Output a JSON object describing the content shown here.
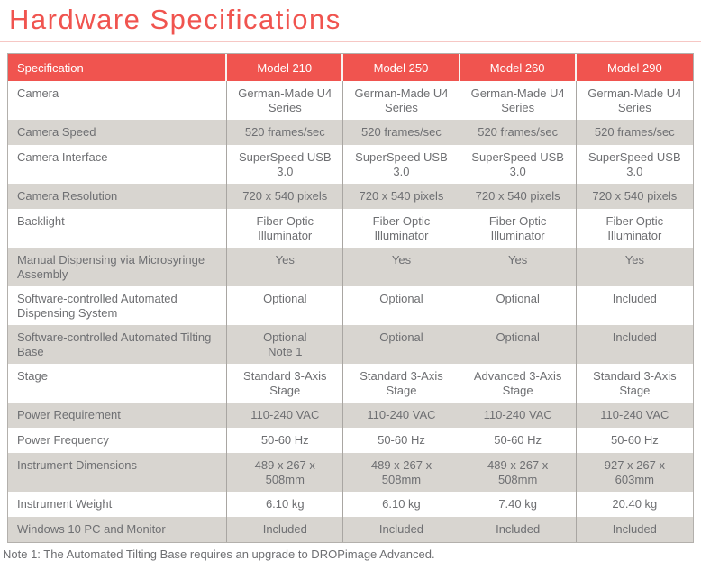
{
  "page": {
    "title": "Hardware Specifications",
    "note": "Note 1: The Automated Tilting Base requires an upgrade to DROPimage Advanced."
  },
  "colors": {
    "accent": "#F0544F",
    "title_underline": "#F6C7C4",
    "alt_row_background": "#D8D5D0",
    "cell_text": "#6E6F72",
    "header_text": "#FFFFFF",
    "column_divider": "#A9A6A2"
  },
  "table": {
    "columns": [
      "Specification",
      "Model 210",
      "Model 250",
      "Model 260",
      "Model 290"
    ],
    "rows": [
      {
        "label": "Camera",
        "values": [
          "German-Made U4 Series",
          "German-Made U4 Series",
          "German-Made U4 Series",
          "German-Made U4 Series"
        ]
      },
      {
        "label": "Camera Speed",
        "values": [
          "520 frames/sec",
          "520 frames/sec",
          "520 frames/sec",
          "520 frames/sec"
        ]
      },
      {
        "label": "Camera Interface",
        "values": [
          "SuperSpeed USB 3.0",
          "SuperSpeed USB 3.0",
          "SuperSpeed USB 3.0",
          "SuperSpeed USB 3.0"
        ]
      },
      {
        "label": "Camera Resolution",
        "values": [
          "720 x 540 pixels",
          "720 x 540 pixels",
          "720 x 540 pixels",
          "720 x 540 pixels"
        ]
      },
      {
        "label": "Backlight",
        "values": [
          "Fiber Optic Illuminator",
          "Fiber Optic Illuminator",
          "Fiber Optic Illuminator",
          "Fiber Optic Illuminator"
        ]
      },
      {
        "label": "Manual Dispensing via Microsyringe Assembly",
        "values": [
          "Yes",
          "Yes",
          "Yes",
          "Yes"
        ]
      },
      {
        "label": "Software-controlled Automated Dispensing System",
        "values": [
          "Optional",
          "Optional",
          "Optional",
          "Included"
        ]
      },
      {
        "label": "Software-controlled Automated Tilting Base",
        "values": [
          "Optional\nNote 1",
          "Optional",
          "Optional",
          "Included"
        ]
      },
      {
        "label": "Stage",
        "values": [
          "Standard 3-Axis Stage",
          "Standard 3-Axis Stage",
          "Advanced 3-Axis Stage",
          "Standard 3-Axis Stage"
        ]
      },
      {
        "label": "Power Requirement",
        "values": [
          "110-240 VAC",
          "110-240 VAC",
          "110-240 VAC",
          "110-240 VAC"
        ]
      },
      {
        "label": "Power Frequency",
        "values": [
          "50-60 Hz",
          "50-60 Hz",
          "50-60 Hz",
          "50-60 Hz"
        ]
      },
      {
        "label": "Instrument Dimensions",
        "values": [
          "489 x 267 x\n508mm",
          "489 x 267 x\n508mm",
          "489 x 267 x\n508mm",
          "927 x 267 x\n603mm"
        ]
      },
      {
        "label": "Instrument Weight",
        "values": [
          "6.10 kg",
          "6.10 kg",
          "7.40 kg",
          "20.40 kg"
        ]
      },
      {
        "label": "Windows 10 PC and Monitor",
        "values": [
          "Included",
          "Included",
          "Included",
          "Included"
        ]
      }
    ]
  }
}
